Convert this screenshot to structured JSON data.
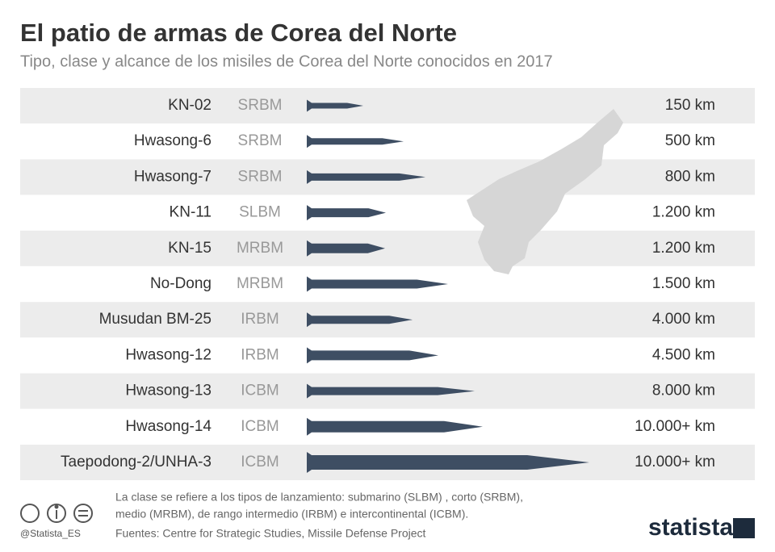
{
  "header": {
    "title": "El patio de armas de Corea del Norte",
    "subtitle": "Tipo, clase y alcance de los misiles de Corea del Norte conocidos en 2017"
  },
  "rows": [
    {
      "name": "KN-02",
      "class": "SRBM",
      "range": "150 km"
    },
    {
      "name": "Hwasong-6",
      "class": "SRBM",
      "range": "500 km"
    },
    {
      "name": "Hwasong-7",
      "class": "SRBM",
      "range": "800 km"
    },
    {
      "name": "KN-11",
      "class": "SLBM",
      "range": "1.200 km"
    },
    {
      "name": "KN-15",
      "class": "MRBM",
      "range": "1.200 km"
    },
    {
      "name": "No-Dong",
      "class": "MRBM",
      "range": "1.500 km"
    },
    {
      "name": "Musudan BM-25",
      "class": "IRBM",
      "range": "4.000 km"
    },
    {
      "name": "Hwasong-12",
      "class": "IRBM",
      "range": "4.500 km"
    },
    {
      "name": "Hwasong-13",
      "class": "ICBM",
      "range": "8.000 km"
    },
    {
      "name": "Hwasong-14",
      "class": "ICBM",
      "range": "10.000+ km"
    },
    {
      "name": "Taepodong-2/UNHA-3",
      "class": "ICBM",
      "range": "10.000+ km"
    }
  ],
  "notes": [
    "La clase se refiere a los tipos de lanzamiento: submarino (SLBM) , corto (SRBM),",
    "medio (MRBM), de rango intermedio (IRBM) e intercontinental (ICBM)."
  ],
  "source": "Fuentes: Centre for Strategic Studies, Missile Defense Project",
  "handle": "@Statista_ES",
  "brand": "statista"
}
